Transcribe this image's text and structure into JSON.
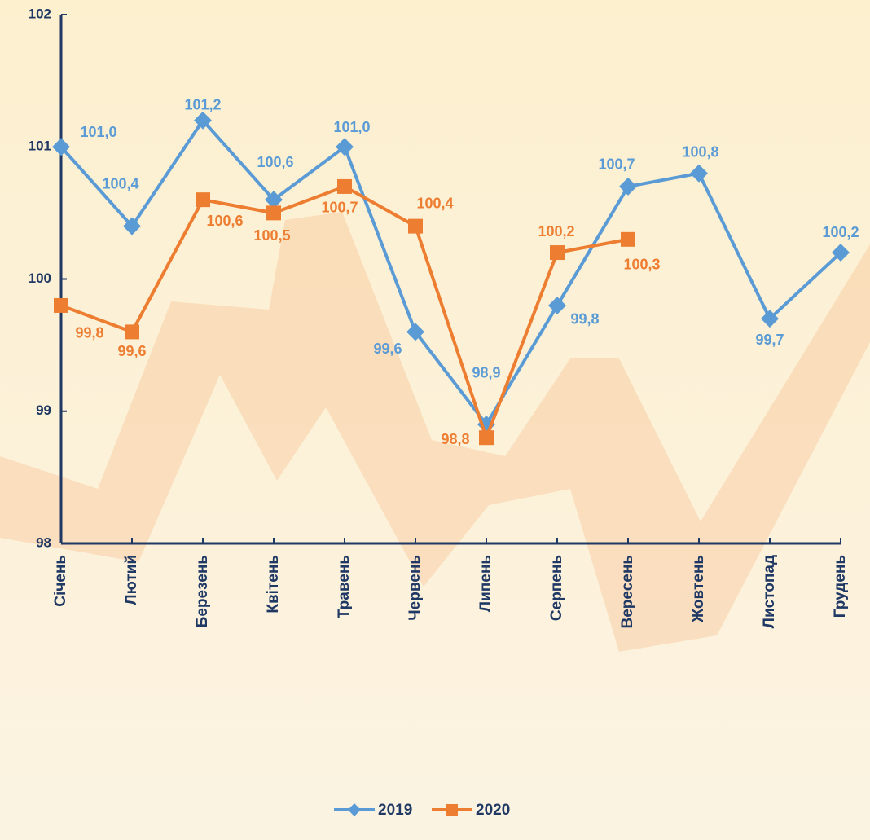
{
  "chart_data": {
    "type": "line",
    "categories": [
      "Січень",
      "Лютий",
      "Березень",
      "Квітень",
      "Травень",
      "Червень",
      "Липень",
      "Серпень",
      "Вересень",
      "Жовтень",
      "Листопад",
      "Грудень"
    ],
    "series": [
      {
        "name": "2019",
        "color": "#5b9bd5",
        "marker": "diamond",
        "values": [
          101.0,
          100.4,
          101.2,
          100.6,
          101.0,
          99.6,
          98.9,
          99.8,
          100.7,
          100.8,
          99.7,
          100.2
        ],
        "value_labels": [
          "101,0",
          "100,4",
          "101,2",
          "100,6",
          "101,0",
          "99,6",
          "98,9",
          "99,8",
          "100,7",
          "100,8",
          "99,7",
          "100,2"
        ]
      },
      {
        "name": "2020",
        "color": "#ed7d31",
        "marker": "square",
        "values": [
          99.8,
          99.6,
          100.6,
          100.5,
          100.7,
          100.4,
          98.8,
          100.2,
          100.3,
          null,
          null,
          null
        ],
        "value_labels": [
          "99,8",
          "99,6",
          "100,6",
          "100,5",
          "100,7",
          "100,4",
          "98,8",
          "100,2",
          "100,3",
          null,
          null,
          null
        ]
      }
    ],
    "ylim": [
      98,
      102
    ],
    "yticks": [
      98,
      99,
      100,
      101,
      102
    ],
    "legend": "bottom"
  }
}
